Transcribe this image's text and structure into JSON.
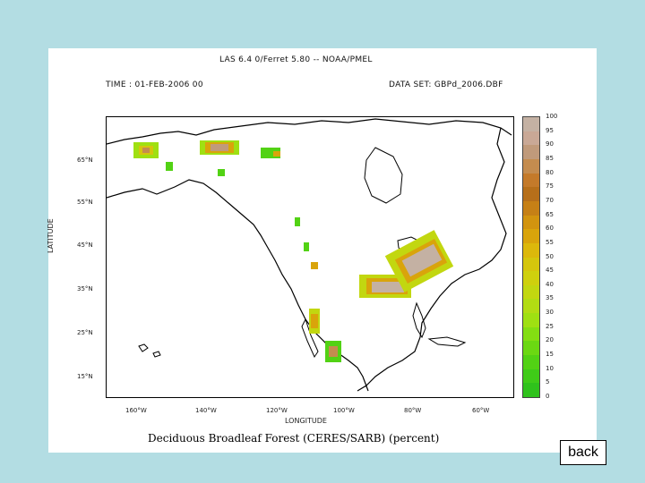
{
  "header": {
    "las_line": "LAS 6.4 0/Ferret 5.80 -- NOAA/PMEL",
    "time_line": "TIME : 01-FEB-2006 00",
    "dataset_line": "DATA SET: GBPd_2006.DBF"
  },
  "map": {
    "y_axis_title": "LATITUDE",
    "x_axis_title": "LONGITUDE",
    "lat_ticks": [
      "65°N",
      "55°N",
      "45°N",
      "35°N",
      "25°N",
      "15°N"
    ],
    "lon_ticks": [
      "160°W",
      "140°W",
      "120°W",
      "100°W",
      "80°W",
      "60°W"
    ],
    "caption": "Deciduous Broadleaf Forest (CERES/SARB) (percent)"
  },
  "colorbar": {
    "labels": [
      "100",
      "95",
      "90",
      "85",
      "80",
      "75",
      "70",
      "65",
      "60",
      "55",
      "50",
      "45",
      "40",
      "35",
      "30",
      "25",
      "20",
      "15",
      "10",
      "5",
      "0"
    ],
    "colors": [
      "#c4b1a3",
      "#c9a896",
      "#c09a7b",
      "#c48c4f",
      "#c47a2a",
      "#b66f1a",
      "#c68016",
      "#d2940f",
      "#d9a40b",
      "#dcb80b",
      "#d5c60c",
      "#cfd00d",
      "#c2d710",
      "#b2dc13",
      "#9fe012",
      "#84de12",
      "#6bd812",
      "#52d214",
      "#3fcb18",
      "#2fc21c"
    ]
  },
  "nav": {
    "back_label": "back"
  }
}
